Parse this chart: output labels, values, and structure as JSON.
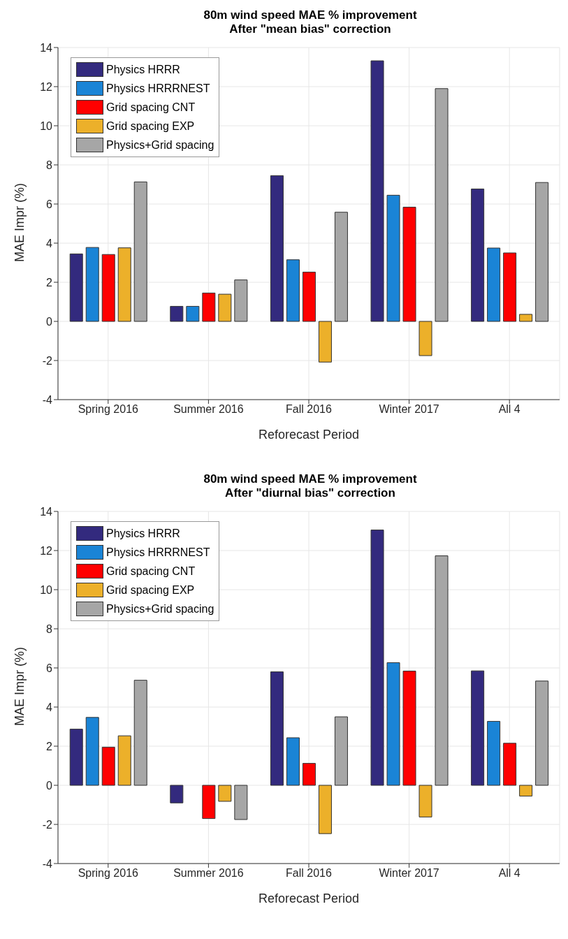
{
  "chart_data": [
    {
      "type": "bar",
      "title": "80m wind speed MAE % improvement\nAfter \"mean bias\" correction",
      "xlabel": "Reforecast Period",
      "ylabel": "MAE Impr (%)",
      "categories": [
        "Spring 2016",
        "Summer 2016",
        "Fall 2016",
        "Winter 2017",
        "All 4"
      ],
      "ylim": [
        -4,
        14
      ],
      "yticks": [
        -4,
        -2,
        0,
        2,
        4,
        6,
        8,
        10,
        12,
        14
      ],
      "grid": true,
      "legend": "top left",
      "series": [
        {
          "name": "Physics HRRR",
          "color": "#332a7e",
          "values": [
            3.45,
            0.77,
            7.45,
            13.32,
            6.77
          ]
        },
        {
          "name": "Physics HRRRNEST",
          "color": "#1a84d6",
          "values": [
            3.78,
            0.77,
            3.15,
            6.45,
            3.75
          ]
        },
        {
          "name": "Grid spacing CNT",
          "color": "#ff0000",
          "values": [
            3.42,
            1.45,
            2.52,
            5.84,
            3.5
          ]
        },
        {
          "name": "Grid spacing EXP",
          "color": "#ecb02a",
          "values": [
            3.76,
            1.39,
            -2.08,
            -1.75,
            0.36
          ]
        },
        {
          "name": "Physics+Grid spacing",
          "color": "#a6a6a6",
          "values": [
            7.13,
            2.12,
            5.58,
            11.9,
            7.1
          ]
        }
      ]
    },
    {
      "type": "bar",
      "title": "80m wind speed MAE % improvement\nAfter \"diurnal bias\" correction",
      "xlabel": "Reforecast Period",
      "ylabel": "MAE Impr (%)",
      "categories": [
        "Spring 2016",
        "Summer 2016",
        "Fall 2016",
        "Winter 2017",
        "All 4"
      ],
      "ylim": [
        -4,
        14
      ],
      "yticks": [
        -4,
        -2,
        0,
        2,
        4,
        6,
        8,
        10,
        12,
        14
      ],
      "grid": true,
      "legend": "top left",
      "series": [
        {
          "name": "Physics HRRR",
          "color": "#332a7e",
          "values": [
            2.87,
            -0.9,
            5.8,
            13.05,
            5.85
          ]
        },
        {
          "name": "Physics HRRRNEST",
          "color": "#1a84d6",
          "values": [
            3.47,
            0,
            2.43,
            6.27,
            3.27
          ]
        },
        {
          "name": "Grid spacing CNT",
          "color": "#ff0000",
          "values": [
            1.95,
            -1.7,
            1.12,
            5.84,
            2.15
          ]
        },
        {
          "name": "Grid spacing EXP",
          "color": "#ecb02a",
          "values": [
            2.53,
            -0.82,
            -2.47,
            -1.62,
            -0.55
          ]
        },
        {
          "name": "Physics+Grid spacing",
          "color": "#a6a6a6",
          "values": [
            5.37,
            -1.75,
            3.5,
            11.73,
            5.33
          ]
        }
      ]
    }
  ]
}
